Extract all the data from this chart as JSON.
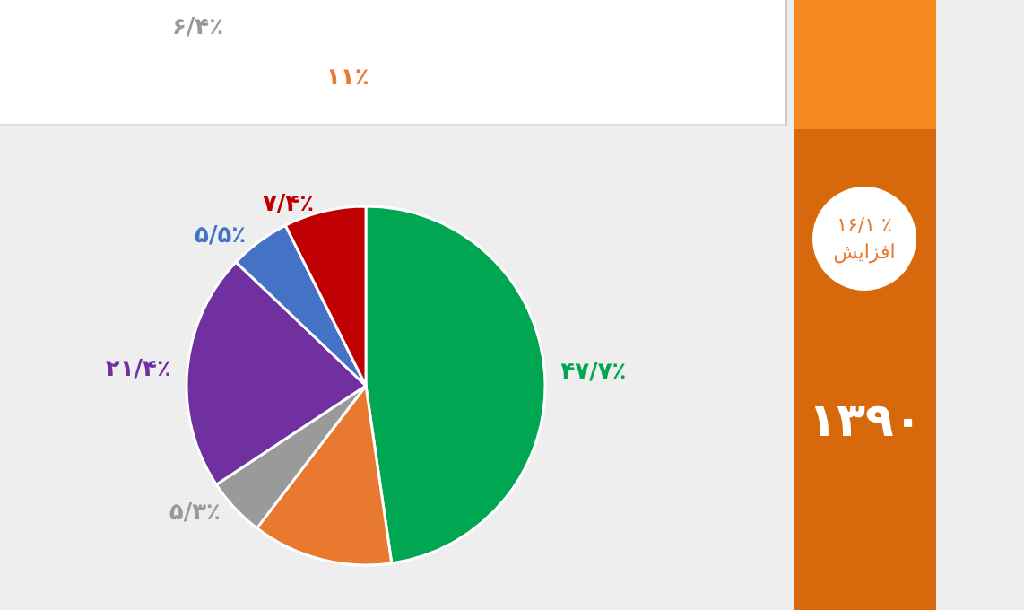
{
  "chart_data": [
    {
      "type": "other",
      "annotations": [
        "۶/۴٪",
        "۱۱٪"
      ]
    },
    {
      "type": "pie",
      "title": "۱۳۹۰",
      "annotations": [
        "٪ ۱۶/۱ افزایش"
      ],
      "categories": [
        null,
        null,
        null,
        null,
        null,
        null
      ],
      "values": [
        47.7,
        12.7,
        5.3,
        21.4,
        5.5,
        7.4
      ],
      "value_labels": [
        "۴۷/۷٪",
        null,
        "۵/۳٪",
        "۲۱/۴٪",
        "۵/۵٪",
        "۷/۴٪"
      ],
      "colors": [
        "#00a651",
        "#e8792e",
        "#9a9a9a",
        "#7030a0",
        "#4472c4",
        "#c00000"
      ]
    }
  ]
}
